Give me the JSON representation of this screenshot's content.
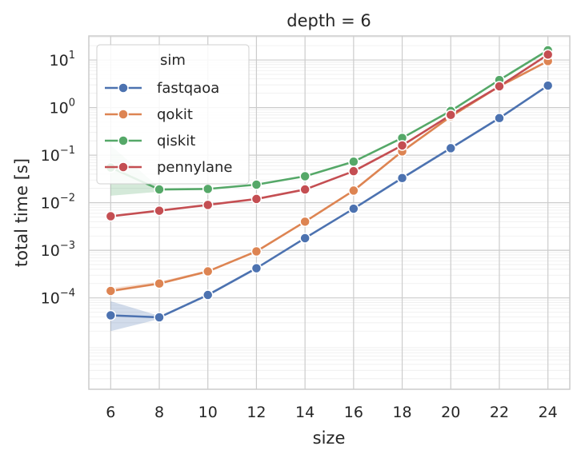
{
  "chart_data": {
    "type": "line",
    "title": "depth = 6",
    "xlabel": "size",
    "ylabel": "total time [s]",
    "x": [
      6,
      8,
      10,
      12,
      14,
      16,
      18,
      20,
      22,
      24
    ],
    "yscale": "log",
    "ylim": [
      1.2e-06,
      32
    ],
    "yticks": [
      {
        "value": 0.0001,
        "base": "10",
        "exp": "−4"
      },
      {
        "value": 0.001,
        "base": "10",
        "exp": "−3"
      },
      {
        "value": 0.01,
        "base": "10",
        "exp": "−2"
      },
      {
        "value": 0.1,
        "base": "10",
        "exp": "−1"
      },
      {
        "value": 1,
        "base": "10",
        "exp": "0"
      },
      {
        "value": 10,
        "base": "10",
        "exp": "1"
      }
    ],
    "grid": true,
    "legend": {
      "title": "sim",
      "position": "top-left"
    },
    "series": [
      {
        "name": "fastqaoa",
        "color": "#4c72b0",
        "values": [
          4.3e-05,
          3.9e-05,
          0.000115,
          0.00042,
          0.0018,
          0.0075,
          0.033,
          0.14,
          0.6,
          2.9
        ],
        "band": {
          "x": [
            6,
            8
          ],
          "lower": [
            2e-05,
            3.6e-05
          ],
          "upper": [
            8.5e-05,
            4.2e-05
          ]
        }
      },
      {
        "name": "qokit",
        "color": "#dd8452",
        "values": [
          0.00014,
          0.0002,
          0.00036,
          0.00095,
          0.004,
          0.018,
          0.12,
          0.65,
          2.8,
          9.5
        ],
        "band": {
          "x": [
            6,
            8,
            10
          ],
          "lower": [
            0.00013,
            0.00019,
            0.00035
          ],
          "upper": [
            0.00016,
            0.00022,
            0.00038
          ]
        }
      },
      {
        "name": "qiskit",
        "color": "#55a868",
        "values": [
          0.055,
          0.019,
          0.0195,
          0.024,
          0.036,
          0.073,
          0.23,
          0.85,
          3.8,
          16
        ],
        "band": {
          "x": [
            6,
            8
          ],
          "lower": [
            0.014,
            0.017
          ],
          "upper": [
            0.16,
            0.021
          ]
        }
      },
      {
        "name": "pennylane",
        "color": "#c44e52",
        "values": [
          0.0052,
          0.0068,
          0.009,
          0.012,
          0.019,
          0.046,
          0.16,
          0.7,
          2.8,
          13
        ]
      }
    ]
  }
}
